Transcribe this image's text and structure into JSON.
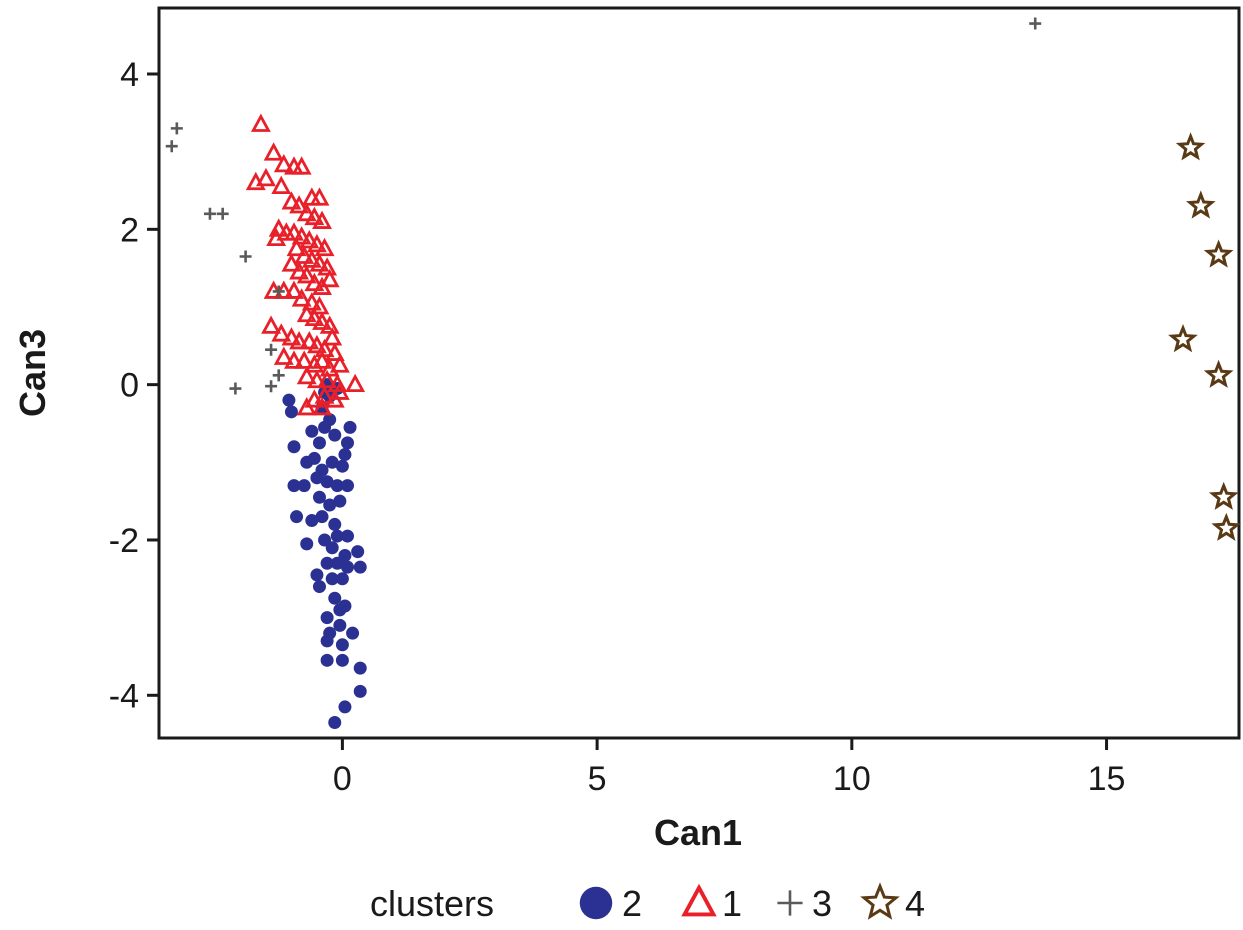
{
  "chart_data": {
    "type": "scatter",
    "xlabel": "Can1",
    "ylabel": "Can3",
    "xlim": [
      -3.6,
      17.6
    ],
    "ylim": [
      -4.55,
      4.85
    ],
    "xticks": [
      0,
      5,
      10,
      15
    ],
    "yticks": [
      -4,
      -2,
      0,
      2,
      4
    ],
    "xtick_labels": [
      "0",
      "5",
      "10",
      "15"
    ],
    "ytick_labels": [
      "-4",
      "-2",
      "0",
      "2",
      "4"
    ],
    "grid": false,
    "legend": {
      "title": "clusters",
      "placement": "bottom",
      "order": [
        "2",
        "1",
        "3",
        "4"
      ]
    },
    "series": [
      {
        "name": "2",
        "marker": "circle",
        "color": "#2b3192",
        "points": [
          [
            -0.35,
            -0.1
          ],
          [
            -0.3,
            0.0
          ],
          [
            -0.25,
            -0.15
          ],
          [
            -0.1,
            -0.05
          ],
          [
            -0.4,
            -0.3
          ],
          [
            -1.05,
            -0.2
          ],
          [
            -1.0,
            -0.35
          ],
          [
            -0.95,
            -0.8
          ],
          [
            -0.6,
            -0.6
          ],
          [
            -0.45,
            -0.75
          ],
          [
            -0.35,
            -0.55
          ],
          [
            -0.25,
            -0.45
          ],
          [
            -0.15,
            -0.65
          ],
          [
            0.1,
            -0.75
          ],
          [
            0.15,
            -0.55
          ],
          [
            -0.55,
            -0.95
          ],
          [
            -0.7,
            -1.0
          ],
          [
            -0.4,
            -1.1
          ],
          [
            -0.2,
            -1.0
          ],
          [
            0.0,
            -1.05
          ],
          [
            0.05,
            -0.9
          ],
          [
            -0.95,
            -1.3
          ],
          [
            -0.75,
            -1.3
          ],
          [
            -0.5,
            -1.2
          ],
          [
            -0.3,
            -1.25
          ],
          [
            -0.1,
            -1.3
          ],
          [
            0.1,
            -1.3
          ],
          [
            -0.45,
            -1.45
          ],
          [
            -0.25,
            -1.55
          ],
          [
            -0.05,
            -1.5
          ],
          [
            -0.9,
            -1.7
          ],
          [
            -0.6,
            -1.75
          ],
          [
            -0.4,
            -1.7
          ],
          [
            -0.15,
            -1.8
          ],
          [
            -0.7,
            -2.05
          ],
          [
            -0.35,
            -2.0
          ],
          [
            -0.1,
            -1.95
          ],
          [
            0.1,
            -1.95
          ],
          [
            -0.2,
            -2.1
          ],
          [
            0.05,
            -2.2
          ],
          [
            0.3,
            -2.15
          ],
          [
            -0.3,
            -2.3
          ],
          [
            -0.1,
            -2.3
          ],
          [
            0.1,
            -2.35
          ],
          [
            0.35,
            -2.35
          ],
          [
            -0.5,
            -2.45
          ],
          [
            -0.2,
            -2.5
          ],
          [
            0.0,
            -2.5
          ],
          [
            -0.45,
            -2.6
          ],
          [
            -0.15,
            -2.75
          ],
          [
            -0.05,
            -2.9
          ],
          [
            0.05,
            -2.85
          ],
          [
            -0.3,
            -3.0
          ],
          [
            -0.05,
            -3.1
          ],
          [
            -0.25,
            -3.2
          ],
          [
            0.2,
            -3.2
          ],
          [
            -0.3,
            -3.3
          ],
          [
            0.0,
            -3.35
          ],
          [
            -0.3,
            -3.55
          ],
          [
            0.0,
            -3.55
          ],
          [
            0.35,
            -3.65
          ],
          [
            0.35,
            -3.95
          ],
          [
            0.05,
            -4.15
          ],
          [
            -0.15,
            -4.35
          ]
        ]
      },
      {
        "name": "1",
        "marker": "triangle",
        "color": "#e8202a",
        "points": [
          [
            -1.6,
            3.35
          ],
          [
            -1.35,
            2.98
          ],
          [
            -1.15,
            2.83
          ],
          [
            -0.95,
            2.8
          ],
          [
            -0.8,
            2.8
          ],
          [
            -1.7,
            2.6
          ],
          [
            -1.5,
            2.65
          ],
          [
            -1.2,
            2.55
          ],
          [
            -0.6,
            2.4
          ],
          [
            -0.45,
            2.4
          ],
          [
            -1.0,
            2.35
          ],
          [
            -0.85,
            2.3
          ],
          [
            -0.7,
            2.2
          ],
          [
            -0.55,
            2.15
          ],
          [
            -0.4,
            2.1
          ],
          [
            -1.25,
            2.0
          ],
          [
            -1.1,
            1.95
          ],
          [
            -0.95,
            1.95
          ],
          [
            -0.8,
            1.9
          ],
          [
            -0.65,
            1.85
          ],
          [
            -0.5,
            1.8
          ],
          [
            -0.35,
            1.75
          ],
          [
            -1.3,
            1.88
          ],
          [
            -0.9,
            1.75
          ],
          [
            -0.75,
            1.65
          ],
          [
            -0.6,
            1.6
          ],
          [
            -0.45,
            1.55
          ],
          [
            -0.3,
            1.5
          ],
          [
            -1.0,
            1.55
          ],
          [
            -0.85,
            1.45
          ],
          [
            -0.7,
            1.4
          ],
          [
            -0.55,
            1.3
          ],
          [
            -0.4,
            1.25
          ],
          [
            -0.25,
            1.35
          ],
          [
            -1.15,
            1.2
          ],
          [
            -0.95,
            1.2
          ],
          [
            -0.8,
            1.1
          ],
          [
            -0.6,
            1.05
          ],
          [
            -0.45,
            1.0
          ],
          [
            -1.35,
            1.2
          ],
          [
            -0.7,
            0.9
          ],
          [
            -0.55,
            0.85
          ],
          [
            -0.4,
            0.8
          ],
          [
            -0.25,
            0.75
          ],
          [
            -1.4,
            0.75
          ],
          [
            -1.2,
            0.65
          ],
          [
            -1.0,
            0.6
          ],
          [
            -0.85,
            0.55
          ],
          [
            -0.65,
            0.55
          ],
          [
            -0.5,
            0.5
          ],
          [
            -0.35,
            0.45
          ],
          [
            -0.2,
            0.6
          ],
          [
            -0.15,
            0.4
          ],
          [
            -1.15,
            0.35
          ],
          [
            -0.95,
            0.3
          ],
          [
            -0.75,
            0.3
          ],
          [
            -0.55,
            0.25
          ],
          [
            -0.4,
            0.3
          ],
          [
            -0.25,
            0.2
          ],
          [
            -0.05,
            0.25
          ],
          [
            -0.7,
            0.1
          ],
          [
            -0.5,
            0.05
          ],
          [
            -0.3,
            0.05
          ],
          [
            -0.1,
            0.0
          ],
          [
            0.25,
            0.0
          ],
          [
            -0.55,
            -0.2
          ],
          [
            -0.35,
            -0.15
          ],
          [
            -0.15,
            -0.2
          ],
          [
            -0.05,
            -0.1
          ],
          [
            -0.7,
            -0.3
          ],
          [
            -0.4,
            -0.3
          ]
        ]
      },
      {
        "name": "3",
        "marker": "plus",
        "color": "#5a5a5a",
        "points": [
          [
            -3.25,
            3.3
          ],
          [
            -3.35,
            3.07
          ],
          [
            -2.6,
            2.2
          ],
          [
            -2.35,
            2.2
          ],
          [
            -1.9,
            1.65
          ],
          [
            -1.25,
            1.2
          ],
          [
            -1.4,
            0.45
          ],
          [
            -2.1,
            -0.05
          ],
          [
            -1.4,
            -0.02
          ],
          [
            -1.25,
            0.12
          ],
          [
            13.6,
            4.65
          ]
        ]
      },
      {
        "name": "4",
        "marker": "star",
        "color": "#5a3a14",
        "points": [
          [
            16.65,
            3.05
          ],
          [
            16.85,
            2.3
          ],
          [
            17.2,
            1.67
          ],
          [
            16.5,
            0.58
          ],
          [
            17.2,
            0.12
          ],
          [
            17.3,
            -1.45
          ],
          [
            17.35,
            -1.85
          ]
        ]
      }
    ]
  }
}
